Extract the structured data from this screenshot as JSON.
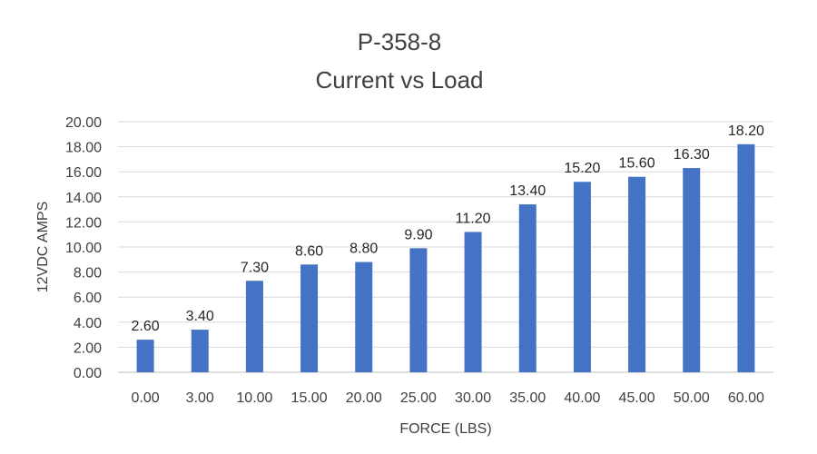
{
  "chart_data": {
    "type": "bar",
    "title_lines": [
      "P-358-8",
      "Current vs Load"
    ],
    "xlabel": "FORCE (LBS)",
    "ylabel": "12VDC AMPS",
    "categories": [
      "0.00",
      "3.00",
      "10.00",
      "15.00",
      "20.00",
      "25.00",
      "30.00",
      "35.00",
      "40.00",
      "45.00",
      "50.00",
      "60.00"
    ],
    "values": [
      2.6,
      3.4,
      7.3,
      8.6,
      8.8,
      9.9,
      11.2,
      13.4,
      15.2,
      15.6,
      16.3,
      18.2
    ],
    "value_labels": [
      "2.60",
      "3.40",
      "7.30",
      "8.60",
      "8.80",
      "9.90",
      "11.20",
      "13.40",
      "15.20",
      "15.60",
      "16.30",
      "18.20"
    ],
    "ylim": [
      0,
      20
    ],
    "y_ticks": [
      "0.00",
      "2.00",
      "4.00",
      "6.00",
      "8.00",
      "10.00",
      "12.00",
      "14.00",
      "16.00",
      "18.00",
      "20.00"
    ],
    "grid": true,
    "legend": "none",
    "bar_color": "#4472C4"
  }
}
